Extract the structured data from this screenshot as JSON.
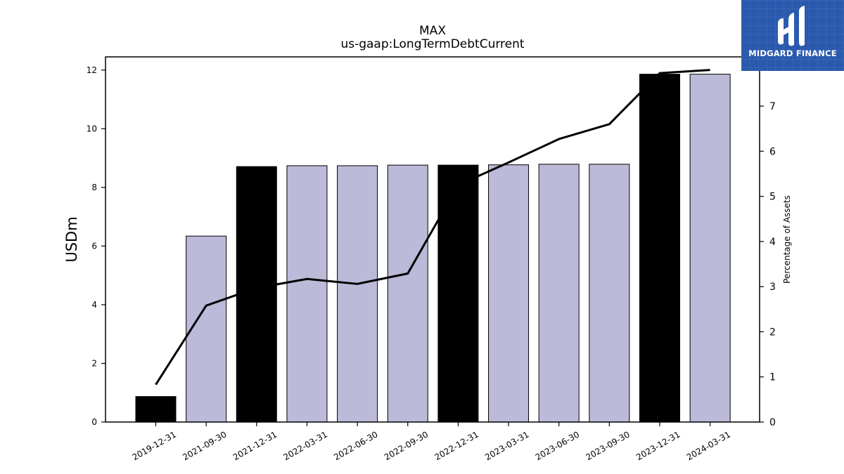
{
  "logo": {
    "text": "MIDGARD FINANCE",
    "bg_color": "#2b59ad"
  },
  "chart_data": {
    "type": "bar",
    "title": "MAX",
    "subtitle": "us-gaap:LongTermDebtCurrent",
    "ylabel": "USDm",
    "ylabel_right": "Percentage of Assets",
    "categories": [
      "2019-12-31",
      "2021-09-30",
      "2021-12-31",
      "2022-03-31",
      "2022-06-30",
      "2022-09-30",
      "2022-12-31",
      "2023-03-31",
      "2023-06-30",
      "2023-09-30",
      "2023-12-31",
      "2024-03-31"
    ],
    "series": [
      {
        "type": "bar",
        "axis": "left",
        "values": [
          0.87,
          6.34,
          8.71,
          8.74,
          8.74,
          8.76,
          8.76,
          8.77,
          8.79,
          8.79,
          11.86,
          11.86
        ],
        "colors": [
          "#000000",
          "#bcbad9",
          "#000000",
          "#bcbad9",
          "#bcbad9",
          "#bcbad9",
          "#000000",
          "#bcbad9",
          "#bcbad9",
          "#bcbad9",
          "#000000",
          "#bcbad9"
        ]
      },
      {
        "type": "line",
        "axis": "right",
        "color": "#000000",
        "values": [
          0.83,
          2.58,
          2.97,
          3.17,
          3.06,
          3.29,
          5.25,
          5.75,
          6.27,
          6.6,
          7.73,
          7.8
        ]
      }
    ],
    "ylim": [
      0,
      12.45
    ],
    "yticks": [
      0,
      2,
      4,
      6,
      8,
      10,
      12
    ],
    "ylim_right": [
      0,
      8.09
    ],
    "yticks_right": [
      0,
      1,
      2,
      3,
      4,
      5,
      6,
      7
    ],
    "grid": false,
    "legend": "none"
  }
}
